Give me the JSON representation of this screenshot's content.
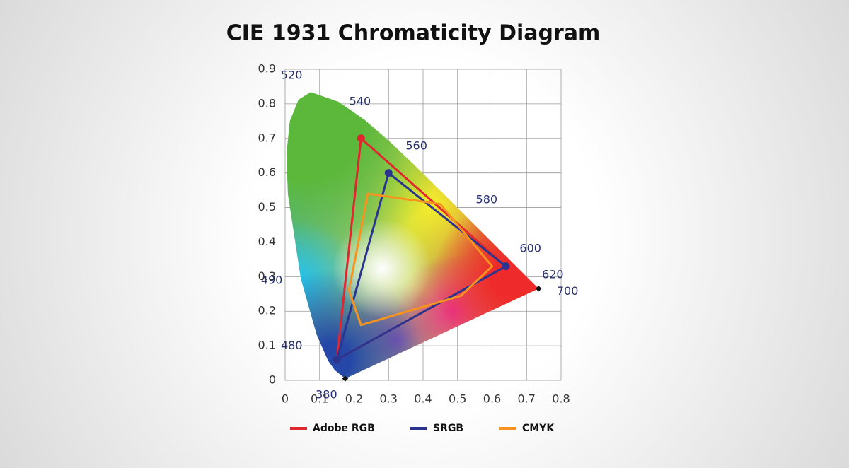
{
  "chart_data": {
    "type": "line",
    "title": "CIE 1931 Chromaticity Diagram",
    "xlim": [
      0,
      0.8
    ],
    "ylim": [
      0,
      0.9
    ],
    "xticks": [
      0,
      0.1,
      0.2,
      0.3,
      0.4,
      0.5,
      0.6,
      0.7,
      0.8
    ],
    "yticks": [
      0,
      0.1,
      0.2,
      0.3,
      0.4,
      0.5,
      0.6,
      0.7,
      0.8,
      0.9
    ],
    "grid": true,
    "closed": true,
    "series": [
      {
        "name": "Adobe RGB",
        "color": "#e0262e",
        "markers": true,
        "x": [
          0.64,
          0.22,
          0.15
        ],
        "y": [
          0.33,
          0.7,
          0.06
        ]
      },
      {
        "name": "SRGB",
        "color": "#2b3590",
        "markers": true,
        "x": [
          0.64,
          0.3,
          0.15
        ],
        "y": [
          0.33,
          0.6,
          0.06
        ]
      },
      {
        "name": "CMYK",
        "color": "#f7931e",
        "markers": false,
        "x": [
          0.24,
          0.45,
          0.6,
          0.51,
          0.22,
          0.185
        ],
        "y": [
          0.54,
          0.51,
          0.33,
          0.245,
          0.16,
          0.26
        ]
      }
    ],
    "locus": {
      "x": [
        0.1741,
        0.144,
        0.1241,
        0.0913,
        0.0454,
        0.0082,
        0.0039,
        0.0139,
        0.0389,
        0.0743,
        0.1547,
        0.2296,
        0.3016,
        0.3731,
        0.4441,
        0.5125,
        0.5752,
        0.627,
        0.6915,
        0.7347
      ],
      "y": [
        0.005,
        0.0297,
        0.0578,
        0.1327,
        0.295,
        0.5384,
        0.6548,
        0.7502,
        0.812,
        0.8338,
        0.8059,
        0.7543,
        0.6923,
        0.6245,
        0.5547,
        0.4866,
        0.4242,
        0.3725,
        0.3083,
        0.2653
      ],
      "labels": [
        "380",
        null,
        null,
        "480",
        "490",
        null,
        null,
        null,
        null,
        "520",
        null,
        "540",
        null,
        "560",
        null,
        "580",
        null,
        "600",
        "620",
        "700"
      ]
    }
  }
}
